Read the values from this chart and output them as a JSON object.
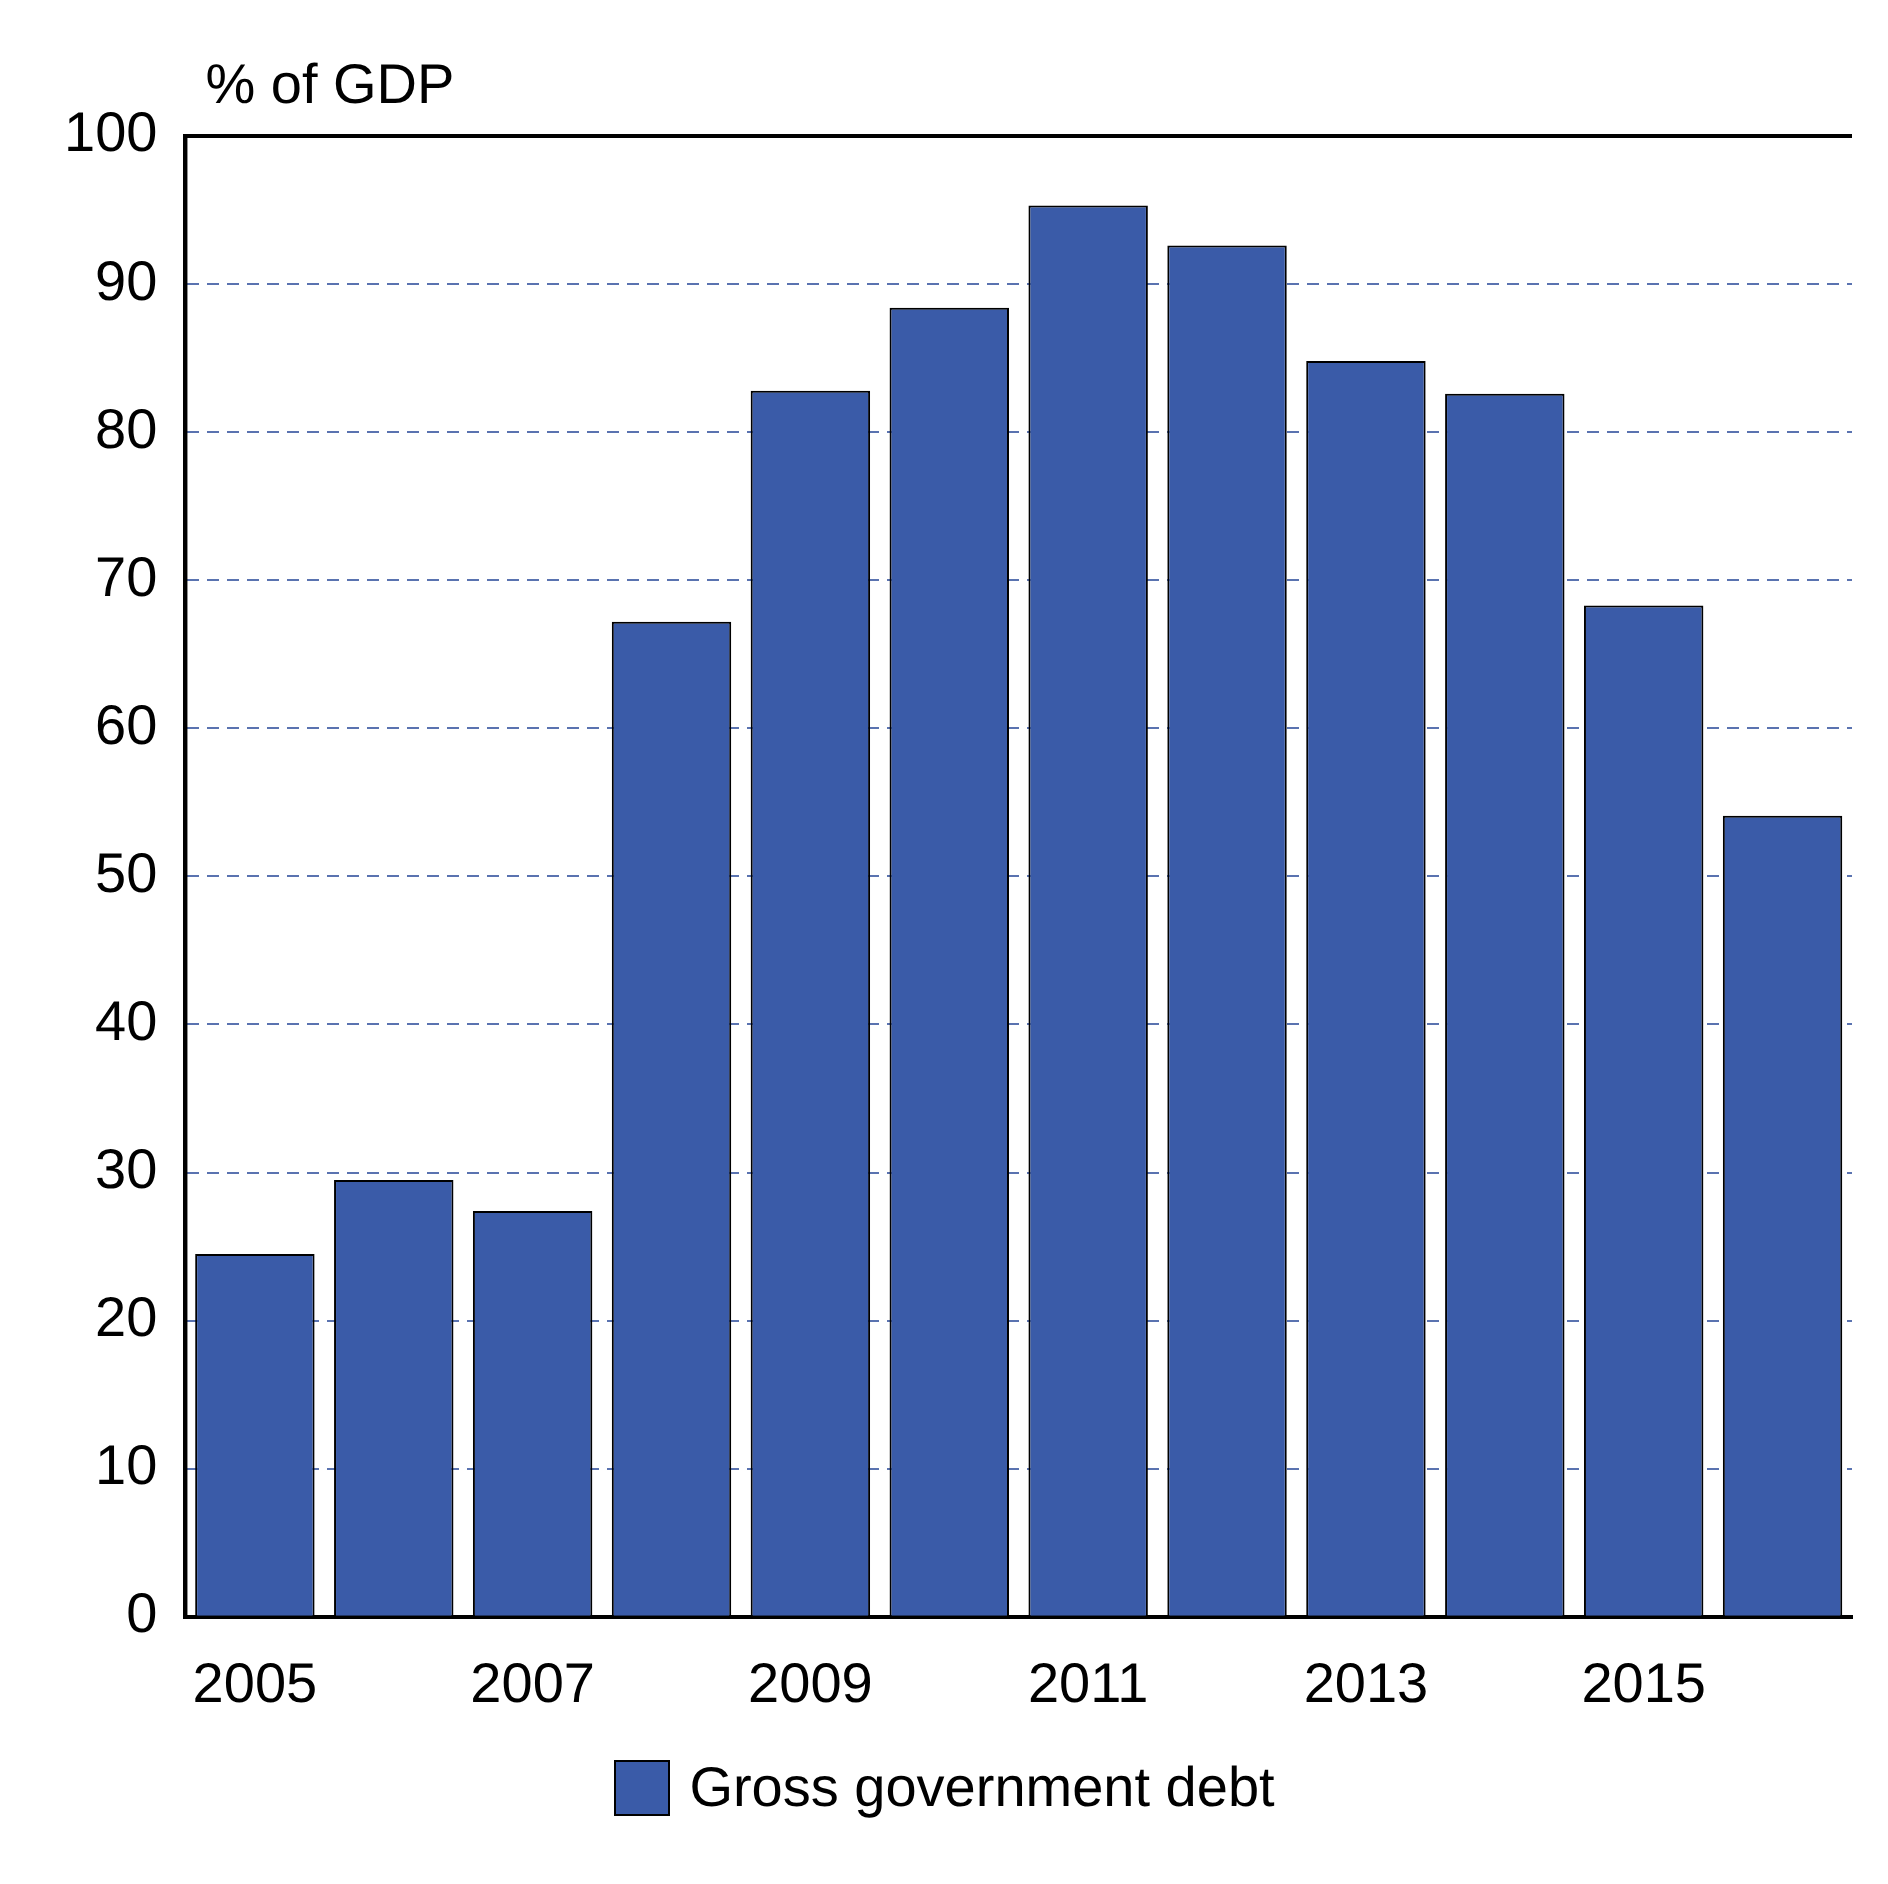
{
  "chart_data": {
    "type": "bar",
    "ylabel": "% of GDP",
    "categories": [
      "2005",
      null,
      "2007",
      null,
      "2009",
      null,
      "2011",
      null,
      "2013",
      null,
      "2015",
      null
    ],
    "series": [
      {
        "name": "Gross government debt",
        "color": "#3a5ba8",
        "values": [
          24.5,
          29.5,
          27.4,
          67.2,
          82.8,
          88.4,
          95.3,
          92.6,
          84.8,
          82.6,
          68.3,
          54.1
        ]
      }
    ],
    "ylim": [
      0,
      100
    ],
    "yticks": [
      0,
      10,
      20,
      30,
      40,
      50,
      60,
      70,
      80,
      90,
      100
    ],
    "grid": "y",
    "legend": "bottom"
  }
}
